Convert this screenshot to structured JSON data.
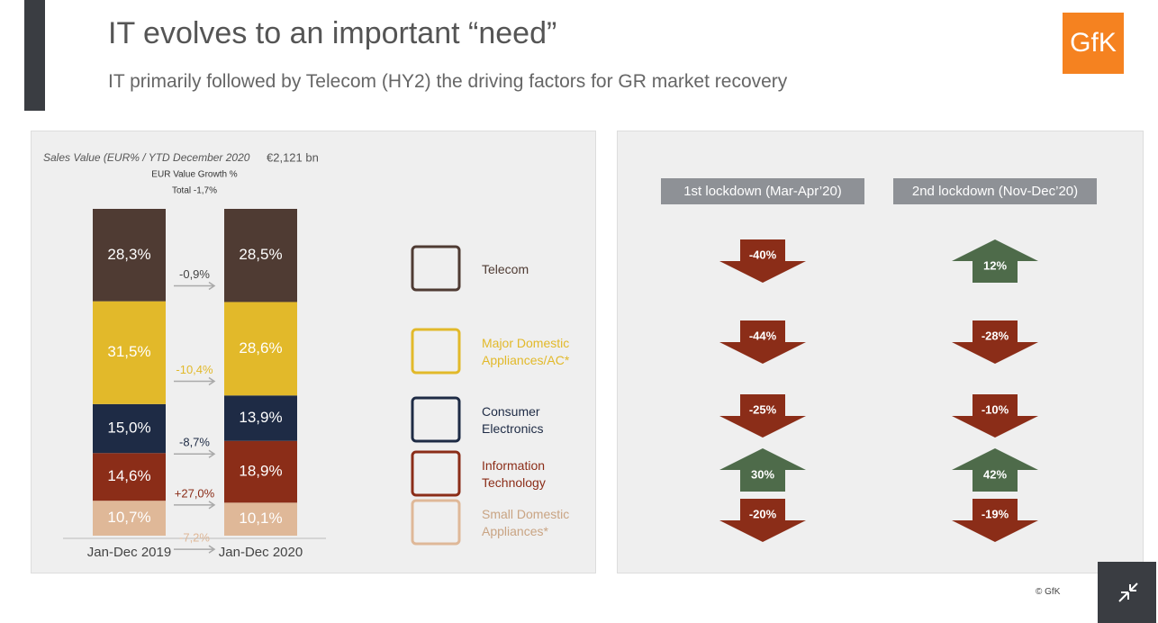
{
  "header": {
    "title": "IT evolves to an important “need”",
    "subtitle": "IT primarily followed by Telecom (HY2) the driving factors for GR market recovery",
    "logo": "GfK"
  },
  "chart_data": {
    "type": "bar",
    "stacked": true,
    "caption": "Sales Value (EUR% / YTD December 2020",
    "total_value": "€2,121 bn",
    "growth_title": "EUR Value Growth %",
    "growth_total": "Total -1,7%",
    "categories": [
      "Jan-Dec 2019",
      "Jan-Dec 2020"
    ],
    "series": [
      {
        "name": "Telecom",
        "color": "#4f3b33",
        "values": [
          28.3,
          28.5
        ],
        "value_labels": [
          "28,3%",
          "28,5%"
        ],
        "growth": {
          "value": -0.9,
          "label": "-0,9%"
        }
      },
      {
        "name": "Major Domestic Appliances/AC*",
        "color": "#e2b92a",
        "values": [
          31.5,
          28.6
        ],
        "value_labels": [
          "31,5%",
          "28,6%"
        ],
        "growth": {
          "value": -10.4,
          "label": "-10,4%"
        }
      },
      {
        "name": "Consumer Electronics",
        "color": "#1e2b45",
        "values": [
          15.0,
          13.9
        ],
        "value_labels": [
          "15,0%",
          "13,9%"
        ],
        "growth": {
          "value": -8.7,
          "label": "-8,7%"
        }
      },
      {
        "name": "Information Technology",
        "color": "#8b2d18",
        "values": [
          14.6,
          18.9
        ],
        "value_labels": [
          "14,6%",
          "18,9%"
        ],
        "growth": {
          "value": 27.0,
          "label": "+27,0%"
        }
      },
      {
        "name": "Small Domestic Appliances*",
        "color": "#dfb898",
        "values": [
          10.7,
          10.1
        ],
        "value_labels": [
          "10,7%",
          "10,1%"
        ],
        "growth": {
          "value": -7.2,
          "label": "-7,2%"
        }
      }
    ]
  },
  "lockdown_table": {
    "columns": [
      {
        "header": "1st lockdown (Mar-Apr’20)",
        "values": [
          -40,
          -44,
          -25,
          30,
          -20
        ],
        "value_labels": [
          "-40%",
          "-44%",
          "-25%",
          "30%",
          "-20%"
        ]
      },
      {
        "header": "2nd lockdown (Nov-Dec’20)",
        "values": [
          12,
          -28,
          -10,
          42,
          -19
        ],
        "value_labels": [
          "12%",
          "-28%",
          "-10%",
          "42%",
          "-19%"
        ]
      }
    ],
    "up_color": "#4e6b4a",
    "down_color": "#8b2d18"
  },
  "footer": {
    "copyright": "© GfK"
  }
}
